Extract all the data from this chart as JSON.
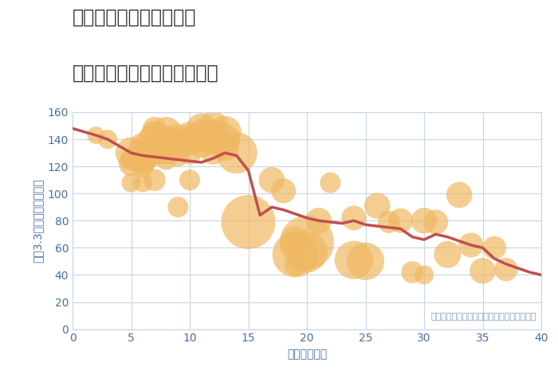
{
  "title_line1": "神奈川県横浜市緑区上山",
  "title_line2": "築年数別中古マンション価格",
  "xlabel": "築年数（年）",
  "ylabel": "坪（3.3㎡）単価（万円）",
  "annotation": "円の大きさは、取引のあった物件面積を示す",
  "xlim": [
    0,
    40
  ],
  "ylim": [
    0,
    160
  ],
  "xticks": [
    0,
    5,
    10,
    15,
    20,
    25,
    30,
    35,
    40
  ],
  "yticks": [
    0,
    20,
    40,
    60,
    80,
    100,
    120,
    140,
    160
  ],
  "line_x": [
    0,
    2,
    3,
    5,
    6,
    7,
    8,
    9,
    10,
    11,
    12,
    13,
    14,
    15,
    16,
    17,
    18,
    19,
    20,
    21,
    22,
    23,
    24,
    25,
    26,
    27,
    28,
    29,
    30,
    31,
    32,
    33,
    34,
    35,
    36,
    37,
    38,
    39,
    40
  ],
  "line_y": [
    148,
    143,
    140,
    130,
    128,
    127,
    126,
    125,
    124,
    123,
    126,
    130,
    128,
    117,
    84,
    90,
    88,
    85,
    82,
    80,
    79,
    78,
    80,
    77,
    76,
    75,
    74,
    68,
    66,
    70,
    68,
    65,
    62,
    60,
    52,
    48,
    45,
    42,
    40
  ],
  "scatter_x": [
    2,
    3,
    5,
    5,
    5,
    5,
    6,
    6,
    6,
    6,
    6,
    7,
    7,
    7,
    7,
    7,
    8,
    8,
    8,
    8,
    9,
    9,
    9,
    9,
    10,
    10,
    10,
    10,
    11,
    11,
    11,
    11,
    12,
    12,
    12,
    12,
    13,
    13,
    13,
    14,
    15,
    17,
    18,
    19,
    19,
    19,
    20,
    20,
    21,
    22,
    24,
    24,
    25,
    26,
    27,
    28,
    29,
    30,
    30,
    31,
    32,
    33,
    34,
    35,
    36,
    37
  ],
  "scatter_y": [
    143,
    140,
    122,
    130,
    125,
    108,
    135,
    128,
    124,
    120,
    108,
    148,
    143,
    138,
    130,
    110,
    145,
    140,
    130,
    125,
    140,
    135,
    128,
    90,
    143,
    138,
    130,
    110,
    148,
    145,
    140,
    135,
    150,
    145,
    138,
    130,
    145,
    140,
    134,
    130,
    79,
    110,
    102,
    65,
    55,
    47,
    64,
    57,
    80,
    108,
    82,
    51,
    50,
    91,
    79,
    80,
    42,
    80,
    40,
    79,
    55,
    99,
    62,
    43,
    60,
    44
  ],
  "scatter_size": [
    25,
    30,
    50,
    80,
    40,
    30,
    60,
    90,
    55,
    40,
    30,
    45,
    65,
    100,
    55,
    40,
    80,
    60,
    45,
    35,
    75,
    55,
    40,
    35,
    60,
    55,
    45,
    35,
    75,
    60,
    55,
    45,
    70,
    60,
    55,
    45,
    90,
    75,
    60,
    140,
    240,
    55,
    50,
    70,
    170,
    40,
    240,
    140,
    55,
    35,
    50,
    120,
    115,
    55,
    40,
    50,
    40,
    55,
    30,
    50,
    60,
    55,
    50,
    55,
    45,
    45
  ],
  "bubble_color": "#f0b862",
  "bubble_alpha": 0.7,
  "line_color": "#c0504d",
  "line_width": 2.5,
  "bg_color": "#ffffff",
  "grid_color": "#c8d4e8",
  "title_color": "#333333",
  "axis_label_color": "#4a6fa5",
  "tick_color": "#4a6fa5",
  "annotation_color": "#7a9cc0",
  "title_fontsize": 17,
  "label_fontsize": 10,
  "tick_fontsize": 10,
  "annotation_fontsize": 8
}
